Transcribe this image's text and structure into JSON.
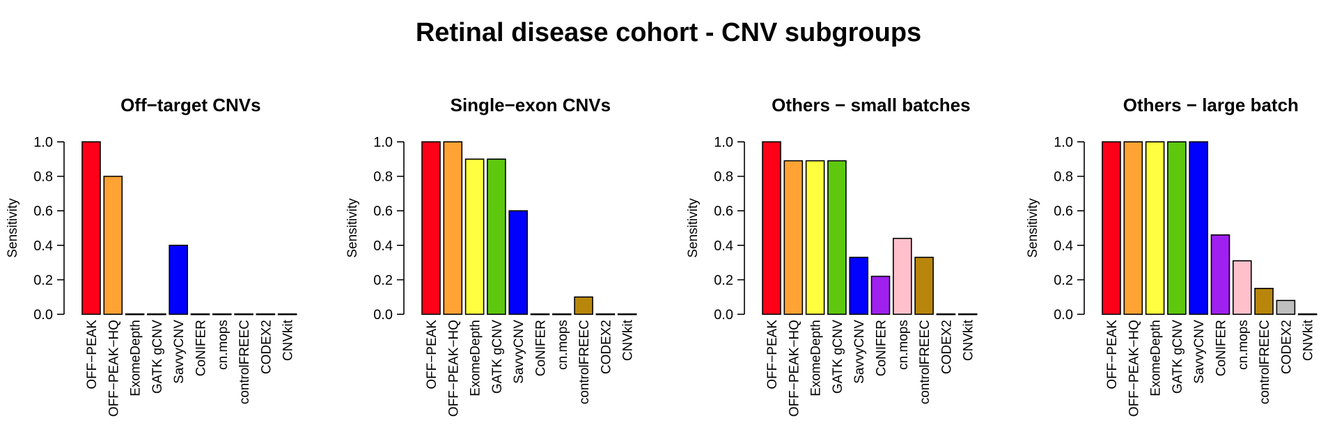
{
  "figure_title": "Retinal disease cohort - CNV subgroups",
  "tools": [
    "OFF−PEAK",
    "OFF−PEAK−HQ",
    "ExomeDepth",
    "GATK gCNV",
    "SavvyCNV",
    "CoNIFER",
    "cn.mops",
    "controlFREEC",
    "CODEX2",
    "CNVkit"
  ],
  "colors": [
    "#FF0019",
    "#FFA334",
    "#FFFF3F",
    "#5DC80E",
    "#0000FF",
    "#A020F0",
    "#FFC0CB",
    "#B8860B",
    "#BEBEBE",
    "#FFFFFF"
  ],
  "chart_data": [
    {
      "type": "bar",
      "title": "Off−target CNVs",
      "ylabel": "Sensitivity",
      "xlabel": "",
      "ylim": [
        0,
        1
      ],
      "yticks": [
        "0.0",
        "0.2",
        "0.4",
        "0.6",
        "0.8",
        "1.0"
      ],
      "categories": [
        "OFF−PEAK",
        "OFF−PEAK−HQ",
        "ExomeDepth",
        "GATK gCNV",
        "SavvyCNV",
        "CoNIFER",
        "cn.mops",
        "controlFREEC",
        "CODEX2",
        "CNVkit"
      ],
      "values": [
        1.0,
        0.8,
        0.0,
        0.0,
        0.4,
        0.0,
        0.0,
        0.0,
        0.0,
        0.0
      ]
    },
    {
      "type": "bar",
      "title": "Single−exon CNVs",
      "ylabel": "Sensitivity",
      "xlabel": "",
      "ylim": [
        0,
        1
      ],
      "yticks": [
        "0.0",
        "0.2",
        "0.4",
        "0.6",
        "0.8",
        "1.0"
      ],
      "categories": [
        "OFF−PEAK",
        "OFF−PEAK−HQ",
        "ExomeDepth",
        "GATK gCNV",
        "SavvyCNV",
        "CoNIFER",
        "cn.mops",
        "controlFREEC",
        "CODEX2",
        "CNVkit"
      ],
      "values": [
        1.0,
        1.0,
        0.9,
        0.9,
        0.6,
        0.0,
        0.0,
        0.1,
        0.0,
        0.0
      ]
    },
    {
      "type": "bar",
      "title": "Others − small batches",
      "ylabel": "Sensitivity",
      "xlabel": "",
      "ylim": [
        0,
        1
      ],
      "yticks": [
        "0.0",
        "0.2",
        "0.4",
        "0.6",
        "0.8",
        "1.0"
      ],
      "categories": [
        "OFF−PEAK",
        "OFF−PEAK−HQ",
        "ExomeDepth",
        "GATK gCNV",
        "SavvyCNV",
        "CoNIFER",
        "cn.mops",
        "controlFREEC",
        "CODEX2",
        "CNVkit"
      ],
      "values": [
        1.0,
        0.89,
        0.89,
        0.89,
        0.33,
        0.22,
        0.44,
        0.33,
        0.0,
        0.0
      ]
    },
    {
      "type": "bar",
      "title": "Others − large batch",
      "ylabel": "Sensitivity",
      "xlabel": "",
      "ylim": [
        0,
        1
      ],
      "yticks": [
        "0.0",
        "0.2",
        "0.4",
        "0.6",
        "0.8",
        "1.0"
      ],
      "categories": [
        "OFF−PEAK",
        "OFF−PEAK−HQ",
        "ExomeDepth",
        "GATK gCNV",
        "SavvyCNV",
        "CoNIFER",
        "cn.mops",
        "controlFREEC",
        "CODEX2",
        "CNVkit"
      ],
      "values": [
        1.0,
        1.0,
        1.0,
        1.0,
        1.0,
        0.46,
        0.31,
        0.15,
        0.08,
        0.0
      ]
    }
  ]
}
